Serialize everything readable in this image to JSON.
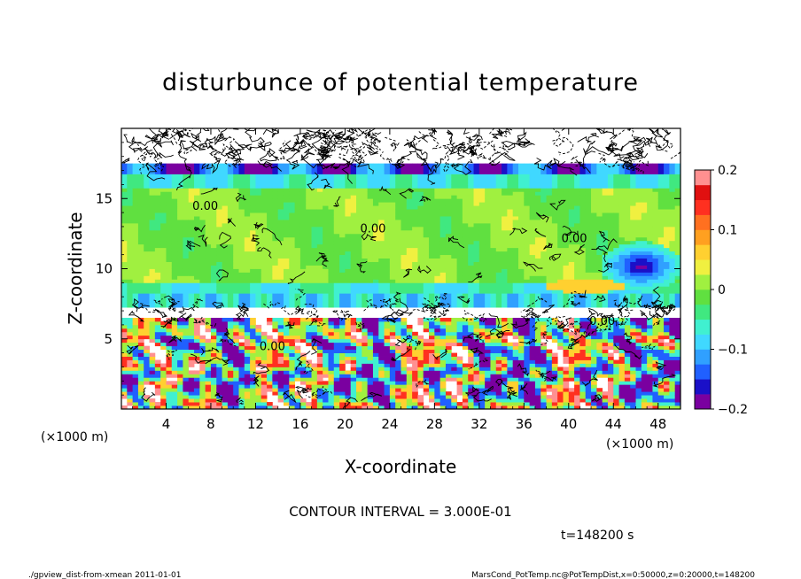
{
  "chart_data": {
    "type": "heatmap",
    "title": "disturbunce of potential temperature",
    "xlabel": "X-coordinate",
    "ylabel": "Z-coordinate",
    "x_unit": "(×1000 m)",
    "xlim": [
      0,
      50
    ],
    "ylim": [
      0,
      20
    ],
    "x_ticks": [
      4,
      8,
      12,
      16,
      20,
      24,
      28,
      32,
      36,
      40,
      44,
      48
    ],
    "y_ticks": [
      5,
      10,
      15
    ],
    "colorbar": {
      "range": [
        -0.2,
        0.2
      ],
      "ticks": [
        "0.2",
        "0.1",
        "0",
        "−0.1",
        "−0.2"
      ],
      "tick_values": [
        0.2,
        0.1,
        0,
        -0.1,
        -0.2
      ],
      "colors": [
        "#7a00a0",
        "#1a10c8",
        "#2060ff",
        "#30a0ff",
        "#40d8ff",
        "#40f0d0",
        "#40e880",
        "#60e040",
        "#a0f040",
        "#f0f040",
        "#ffd030",
        "#ffa020",
        "#ff7020",
        "#ff3020",
        "#e01010",
        "#ff9090"
      ]
    },
    "contour_labels": [
      {
        "x": 7.5,
        "z": 14.2,
        "text": "0.00"
      },
      {
        "x": 22.5,
        "z": 12.6,
        "text": "0.00"
      },
      {
        "x": 40.5,
        "z": 11.9,
        "text": "0.00"
      },
      {
        "x": 43.0,
        "z": 6.0,
        "text": "0.00"
      },
      {
        "x": 13.5,
        "z": 4.2,
        "text": "0.00"
      }
    ],
    "contour_interval_text": "CONTOUR INTERVAL = 3.000E-01",
    "time_text": "t=148200 s"
  },
  "footer": {
    "left": "./gpview_dist-from-xmean  2011-01-01",
    "right": "MarsCond_PotTemp.nc@PotTempDist,x=0:50000,z=0:20000,t=148200"
  }
}
